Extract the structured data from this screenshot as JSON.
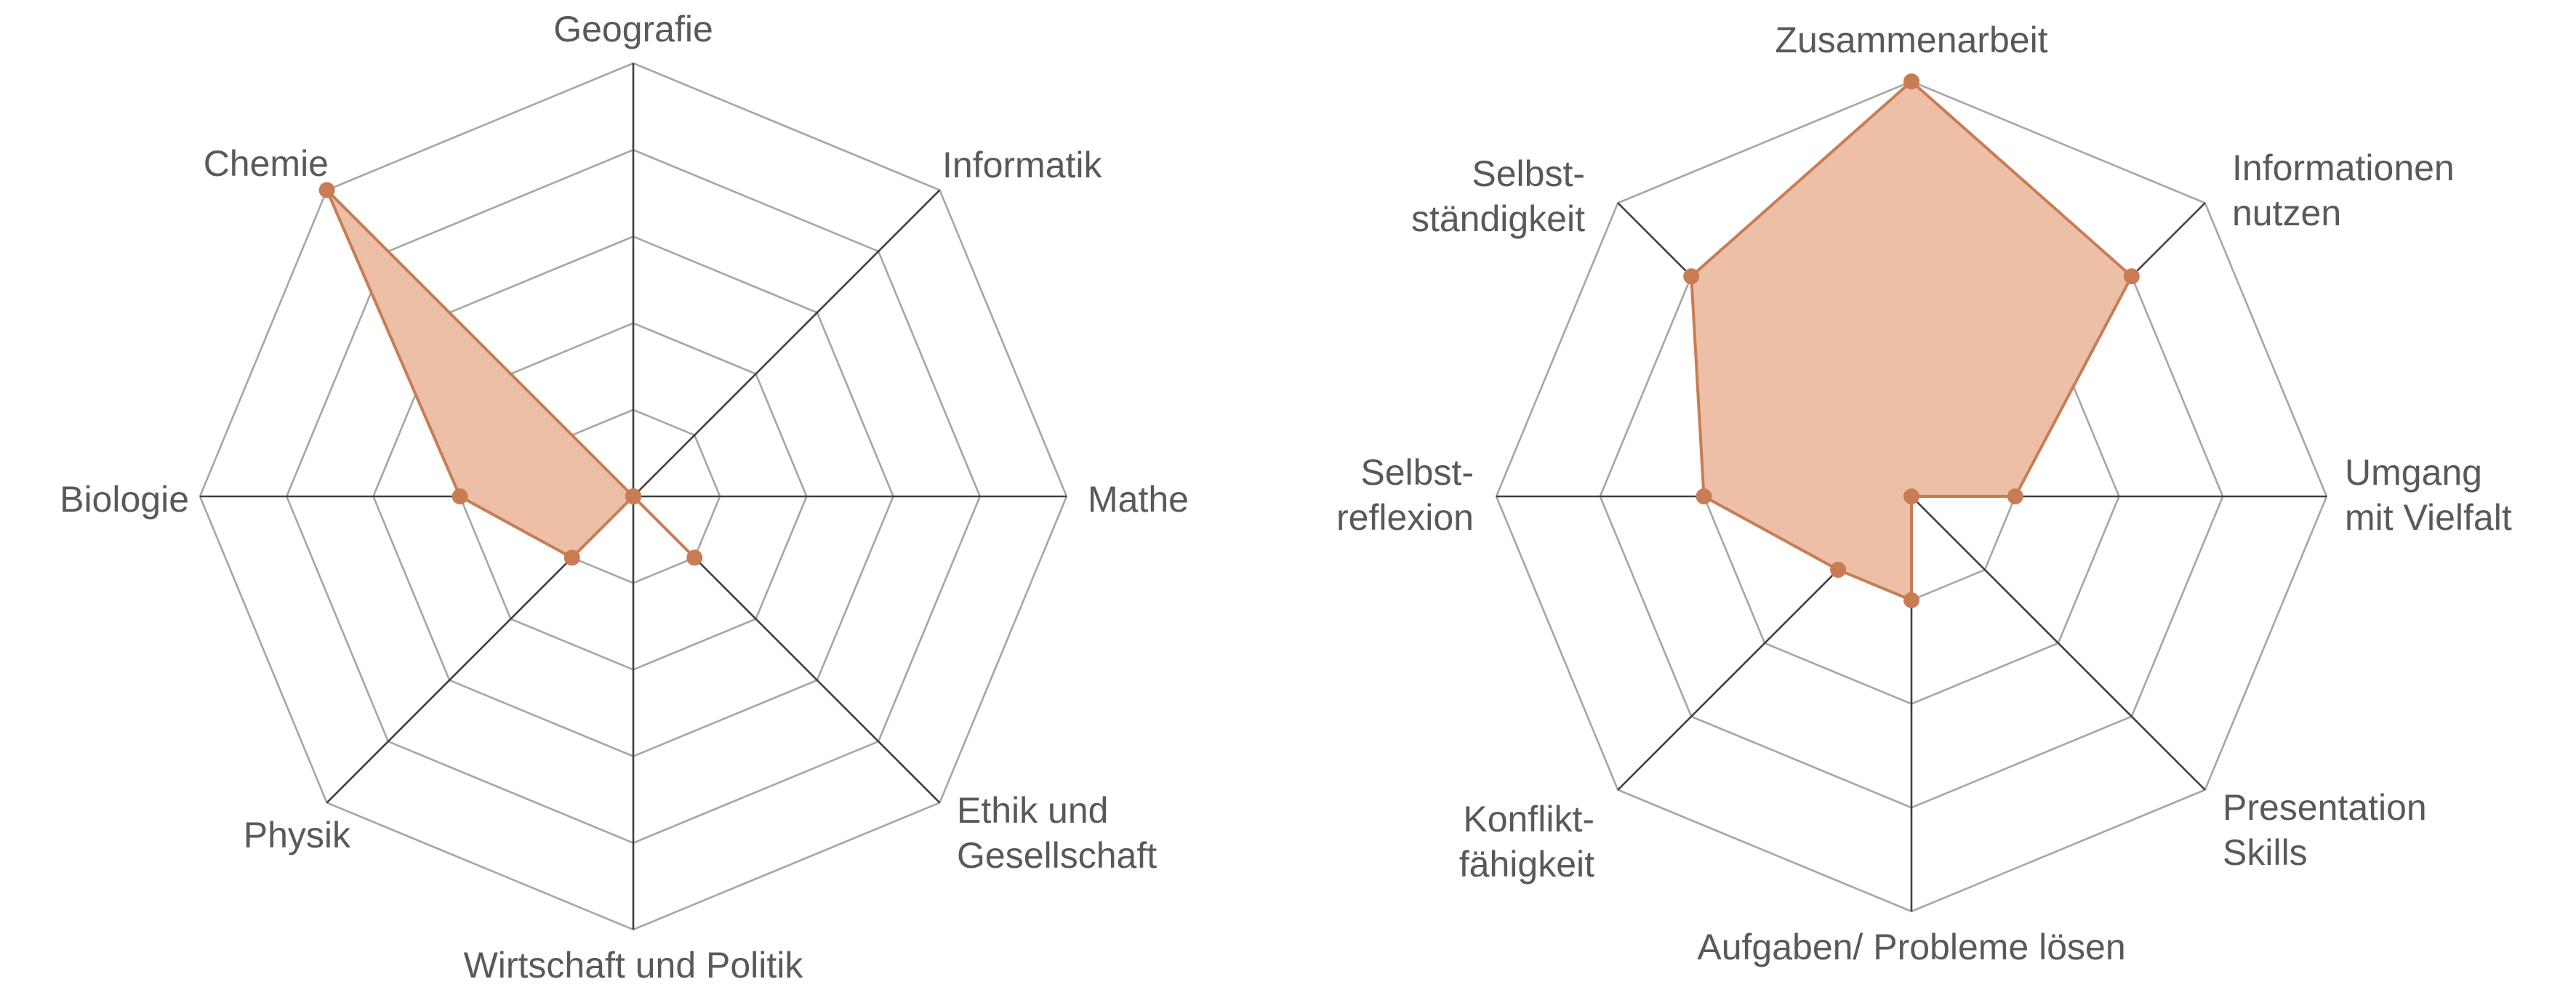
{
  "chart_data": [
    {
      "type": "radar",
      "title": "",
      "axes": [
        "Geografie",
        "Informatik",
        "Mathe",
        "Ethik und\nGesellschaft",
        "Wirtschaft und Politik",
        "Physik",
        "Biologie",
        "Chemie"
      ],
      "range": [
        0,
        5
      ],
      "grid_rings": 5,
      "series": [
        {
          "values": [
            0,
            0,
            0,
            1,
            0,
            1,
            2,
            5
          ]
        }
      ]
    },
    {
      "type": "radar",
      "title": "",
      "axes": [
        "Zusammenarbeit",
        "Informationen\nnutzen",
        "Umgang\nmit Vielfalt",
        "Presentation\nSkills",
        "Aufgaben/ Probleme lösen",
        "Konflikt-\nfähigkeit",
        "Selbst-\nreflexion",
        "Selbst-\nständigkeit"
      ],
      "range": [
        0,
        4
      ],
      "grid_rings": 4,
      "series": [
        {
          "values": [
            4,
            3,
            1,
            0,
            1,
            1,
            2,
            3
          ]
        }
      ]
    }
  ],
  "colors": {
    "fill": "#ecbfa6",
    "stroke": "#c97c54",
    "ring": "#a6a6a6",
    "spoke": "#404040",
    "label": "#595959"
  }
}
